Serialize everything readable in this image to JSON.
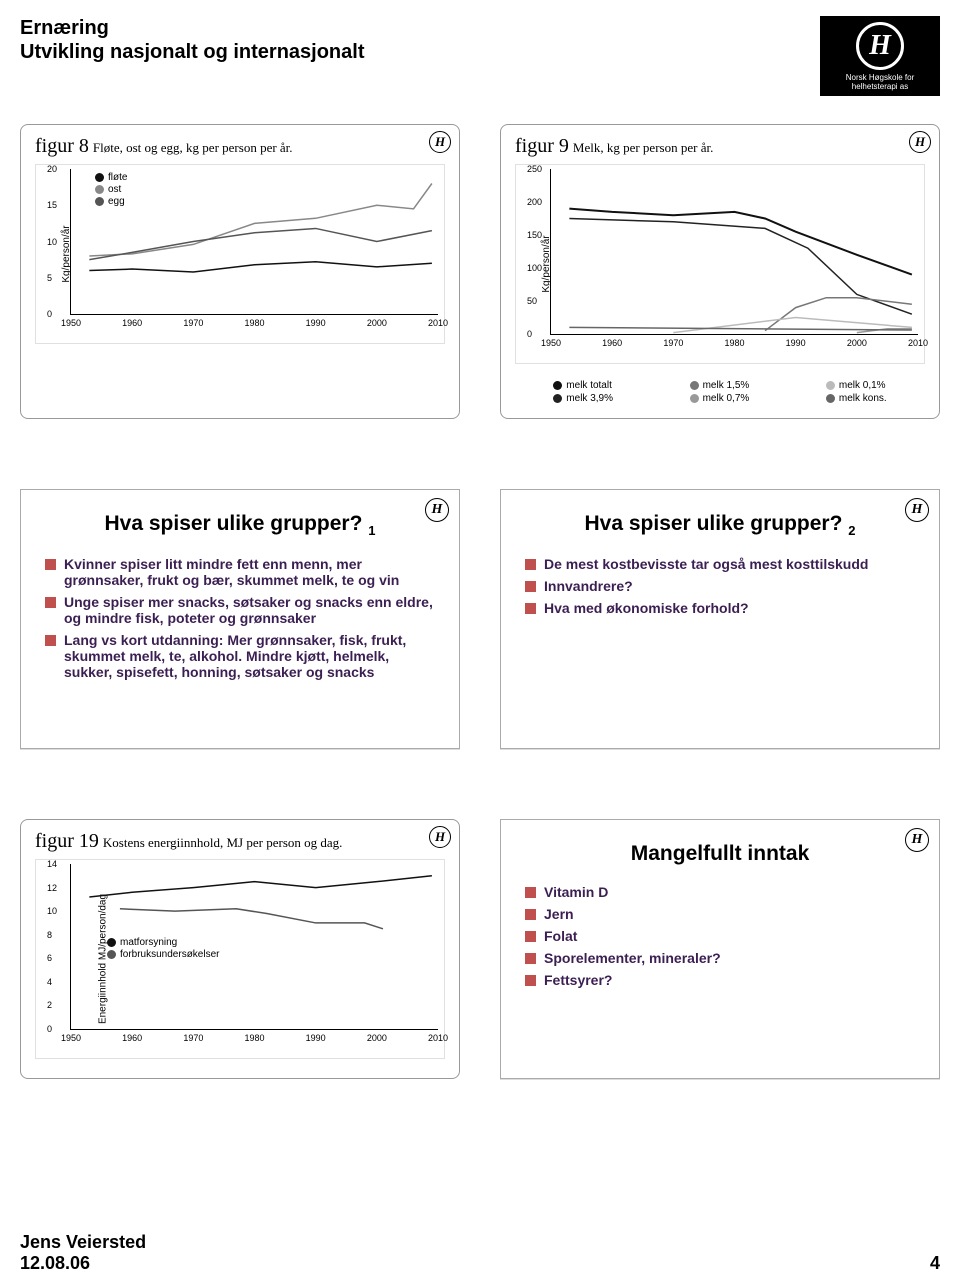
{
  "header": {
    "line1": "Ernæring",
    "line2": "Utvikling nasjonalt og internasjonalt",
    "logo_text": "Norsk Høgskole for helhetsterapi as"
  },
  "figur8": {
    "title_num": "figur 8",
    "title_desc": "Fløte, ost og egg, kg per person per år.",
    "ylabel": "Kg/person/år",
    "ylim": [
      0,
      20
    ],
    "yticks": [
      0,
      5,
      10,
      15,
      20
    ],
    "xlim": [
      1950,
      2010
    ],
    "xticks": [
      1950,
      1960,
      1970,
      1980,
      1990,
      2000,
      2010
    ],
    "legend": [
      {
        "label": "fløte",
        "color": "#111"
      },
      {
        "label": "ost",
        "color": "#888"
      },
      {
        "label": "egg",
        "color": "#555"
      }
    ],
    "series": [
      {
        "color": "#888",
        "width": 1.5,
        "points": [
          [
            1953,
            8.0
          ],
          [
            1960,
            8.3
          ],
          [
            1970,
            9.6
          ],
          [
            1980,
            12.5
          ],
          [
            1990,
            13.2
          ],
          [
            2000,
            15.0
          ],
          [
            2006,
            14.5
          ],
          [
            2009,
            18.0
          ]
        ]
      },
      {
        "color": "#555",
        "width": 1.5,
        "points": [
          [
            1953,
            7.5
          ],
          [
            1960,
            8.5
          ],
          [
            1970,
            10.0
          ],
          [
            1980,
            11.2
          ],
          [
            1990,
            11.8
          ],
          [
            2000,
            10.0
          ],
          [
            2009,
            11.5
          ]
        ]
      },
      {
        "color": "#111",
        "width": 1.5,
        "points": [
          [
            1953,
            6.0
          ],
          [
            1960,
            6.2
          ],
          [
            1970,
            5.8
          ],
          [
            1980,
            6.8
          ],
          [
            1990,
            7.2
          ],
          [
            2000,
            6.5
          ],
          [
            2009,
            7.0
          ]
        ]
      }
    ]
  },
  "figur9": {
    "title_num": "figur 9",
    "title_desc": "Melk, kg per person per år.",
    "ylabel": "Kg/person/år",
    "ylim": [
      0,
      250
    ],
    "yticks": [
      0,
      50,
      100,
      150,
      200,
      250
    ],
    "xlim": [
      1950,
      2010
    ],
    "xticks": [
      1950,
      1960,
      1970,
      1980,
      1990,
      2000,
      2010
    ],
    "legend_cols": [
      [
        {
          "label": "melk totalt",
          "color": "#111"
        },
        {
          "label": "melk 3,9%",
          "color": "#222"
        }
      ],
      [
        {
          "label": "melk 1,5%",
          "color": "#777"
        },
        {
          "label": "melk 0,7%",
          "color": "#999"
        }
      ],
      [
        {
          "label": "melk 0,1%",
          "color": "#bbb"
        },
        {
          "label": "melk kons.",
          "color": "#666"
        }
      ]
    ],
    "series": [
      {
        "color": "#111",
        "width": 2,
        "points": [
          [
            1953,
            190
          ],
          [
            1960,
            185
          ],
          [
            1970,
            180
          ],
          [
            1980,
            185
          ],
          [
            1985,
            175
          ],
          [
            1990,
            155
          ],
          [
            2000,
            120
          ],
          [
            2009,
            90
          ]
        ]
      },
      {
        "color": "#222",
        "width": 1.5,
        "points": [
          [
            1953,
            175
          ],
          [
            1970,
            170
          ],
          [
            1985,
            160
          ],
          [
            1992,
            130
          ],
          [
            2000,
            60
          ],
          [
            2009,
            30
          ]
        ]
      },
      {
        "color": "#777",
        "width": 1.5,
        "points": [
          [
            1985,
            5
          ],
          [
            1990,
            40
          ],
          [
            1995,
            55
          ],
          [
            2000,
            55
          ],
          [
            2009,
            45
          ]
        ]
      },
      {
        "color": "#bbb",
        "width": 1.5,
        "points": [
          [
            1970,
            2
          ],
          [
            1990,
            25
          ],
          [
            2009,
            10
          ]
        ]
      },
      {
        "color": "#999",
        "width": 1.5,
        "points": [
          [
            2000,
            2
          ],
          [
            2005,
            8
          ],
          [
            2009,
            8
          ]
        ]
      },
      {
        "color": "#666",
        "width": 1.5,
        "points": [
          [
            1953,
            10
          ],
          [
            2009,
            6
          ]
        ]
      }
    ]
  },
  "slide_hva1": {
    "heading": "Hva spiser ulike grupper?",
    "sub": "1",
    "bullets": [
      "Kvinner spiser litt mindre fett enn menn, mer grønnsaker, frukt og bær, skummet melk, te og vin",
      "Unge spiser mer snacks, søtsaker og snacks enn eldre, og mindre fisk, poteter og grønnsaker",
      "Lang vs kort utdanning: Mer grønnsaker, fisk, frukt, skummet melk, te, alkohol. Mindre kjøtt, helmelk, sukker, spisefett, honning, søtsaker og snacks"
    ]
  },
  "slide_hva2": {
    "heading": "Hva spiser ulike grupper?",
    "sub": "2",
    "bullets": [
      "De mest kostbevisste tar også mest kosttilskudd",
      "Innvandrere?",
      "Hva med økonomiske forhold?"
    ]
  },
  "figur19": {
    "title_num": "figur 19",
    "title_desc": "Kostens energiinnhold, MJ per person og dag.",
    "ylabel": "Energiinnhold MJ/person/dag",
    "ylim": [
      0,
      14
    ],
    "yticks": [
      0,
      2,
      4,
      6,
      8,
      10,
      12,
      14
    ],
    "xlim": [
      1950,
      2010
    ],
    "xticks": [
      1950,
      1960,
      1970,
      1980,
      1990,
      2000,
      2010
    ],
    "legend": [
      {
        "label": "matforsyning",
        "color": "#111"
      },
      {
        "label": "forbruksundersøkelser",
        "color": "#555"
      }
    ],
    "series": [
      {
        "color": "#111",
        "width": 1.5,
        "points": [
          [
            1953,
            11.2
          ],
          [
            1960,
            11.6
          ],
          [
            1970,
            12.0
          ],
          [
            1980,
            12.5
          ],
          [
            1990,
            12.0
          ],
          [
            2000,
            12.5
          ],
          [
            2009,
            13.0
          ]
        ]
      },
      {
        "color": "#555",
        "width": 1.5,
        "points": [
          [
            1958,
            10.2
          ],
          [
            1967,
            10.0
          ],
          [
            1977,
            10.2
          ],
          [
            1982,
            9.8
          ],
          [
            1990,
            9.0
          ],
          [
            1998,
            9.0
          ],
          [
            2001,
            8.5
          ]
        ]
      }
    ]
  },
  "slide_mangel": {
    "heading": "Mangelfullt inntak",
    "bullets": [
      "Vitamin D",
      "Jern",
      "Folat",
      "Sporelementer, mineraler?",
      "Fettsyrer?"
    ]
  },
  "footer": {
    "name": "Jens Veiersted",
    "date": "12.08.06",
    "page": "4"
  }
}
